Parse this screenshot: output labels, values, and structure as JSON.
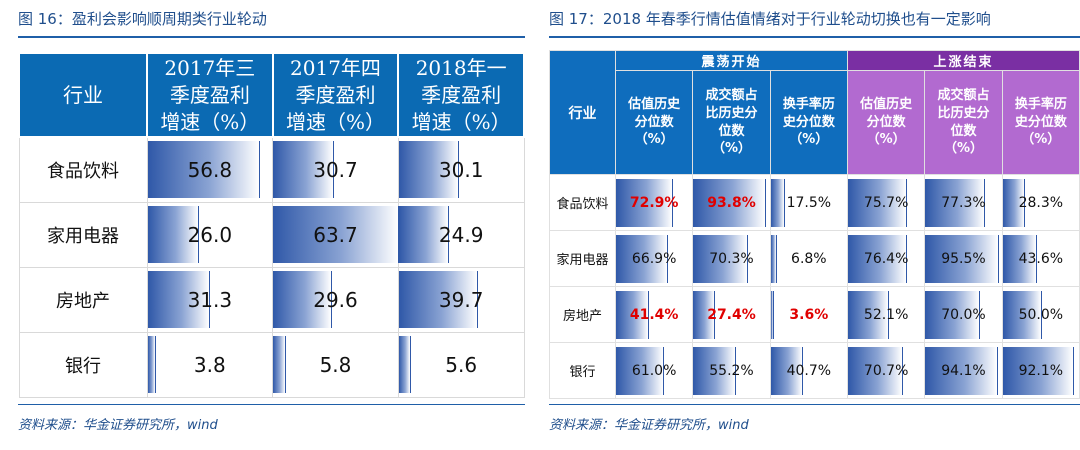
{
  "left": {
    "title": "图 16：盈利会影响顺周期类行业轮动",
    "header": {
      "industry": "行业",
      "cols": [
        [
          "2017年三",
          "季度盈利",
          "增速（%）"
        ],
        [
          "2017年四",
          "季度盈利",
          "增速（%）"
        ],
        [
          "2018年一",
          "季度盈利",
          "增速（%）"
        ]
      ]
    },
    "source": "资料来源：华金证券研究所，wind"
  },
  "right": {
    "title": "图 17：2018 年春季行情估值情绪对于行业轮动切换也有一定影响",
    "group1": "震荡开始",
    "group2": "上涨结束",
    "industry_header": "行业",
    "col_headers": [
      [
        "估值历史",
        "分位数",
        "（%）"
      ],
      [
        "成交额占",
        "比历史分",
        "位数",
        "（%）"
      ],
      [
        "换手率历",
        "史分位数",
        "（%）"
      ],
      [
        "估值历史",
        "分位数",
        "（%）"
      ],
      [
        "成交额占",
        "比历史分",
        "位数",
        "（%）"
      ],
      [
        "换手率历",
        "史分位数",
        "（%）"
      ]
    ],
    "source": "资料来源：华金证券研究所，wind"
  },
  "chart_data": [
    {
      "type": "table",
      "title": "图 16：盈利会影响顺周期类行业轮动",
      "columns": [
        "行业",
        "2017年三季度盈利增速（%）",
        "2017年四季度盈利增速（%）",
        "2018年一季度盈利增速（%）"
      ],
      "rows": [
        "食品饮料",
        "家用电器",
        "房地产",
        "银行"
      ],
      "series": [
        {
          "name": "2017年三季度盈利增速（%）",
          "values": [
            56.8,
            26.0,
            31.3,
            3.8
          ],
          "display": [
            "56.8",
            "26.0",
            "31.3",
            "3.8"
          ]
        },
        {
          "name": "2017年四季度盈利增速（%）",
          "values": [
            30.7,
            63.7,
            29.6,
            5.8
          ],
          "display": [
            "30.7",
            "63.7",
            "29.6",
            "5.8"
          ]
        },
        {
          "name": "2018年一季度盈利增速（%）",
          "values": [
            30.1,
            24.9,
            39.7,
            5.6
          ],
          "display": [
            "30.1",
            "24.9",
            "39.7",
            "5.6"
          ]
        }
      ],
      "bar_max": 63.7
    },
    {
      "type": "table",
      "title": "图 17：2018 年春季行情估值情绪对于行业轮动切换也有一定影响",
      "groups": [
        "震荡开始",
        "上涨结束"
      ],
      "columns": [
        "行业",
        "估值历史分位数（%）",
        "成交额占比历史分位数（%）",
        "换手率历史分位数（%）",
        "估值历史分位数（%）",
        "成交额占比历史分位数（%）",
        "换手率历史分位数（%）"
      ],
      "rows": [
        "食品饮料",
        "家用电器",
        "房地产",
        "银行"
      ],
      "series": [
        {
          "name": "震荡开始-估值历史分位数",
          "values": [
            72.9,
            66.9,
            41.4,
            61.0
          ],
          "display": [
            "72.9%",
            "66.9%",
            "41.4%",
            "61.0%"
          ]
        },
        {
          "name": "震荡开始-成交额占比历史分位数",
          "values": [
            93.8,
            70.3,
            27.4,
            55.2
          ],
          "display": [
            "93.8%",
            "70.3%",
            "27.4%",
            "55.2%"
          ]
        },
        {
          "name": "震荡开始-换手率历史分位数",
          "values": [
            17.5,
            6.8,
            3.6,
            40.7
          ],
          "display": [
            "17.5%",
            "6.8%",
            "3.6%",
            "40.7%"
          ]
        },
        {
          "name": "上涨结束-估值历史分位数",
          "values": [
            75.7,
            76.4,
            52.1,
            70.7
          ],
          "display": [
            "75.7%",
            "76.4%",
            "52.1%",
            "70.7%"
          ]
        },
        {
          "name": "上涨结束-成交额占比历史分位数",
          "values": [
            77.3,
            95.5,
            70.0,
            94.1
          ],
          "display": [
            "77.3%",
            "95.5%",
            "70.0%",
            "94.1%"
          ]
        },
        {
          "name": "上涨结束-换手率历史分位数",
          "values": [
            28.3,
            43.6,
            50.0,
            92.1
          ],
          "display": [
            "28.3%",
            "43.6%",
            "50.0%",
            "92.1%"
          ]
        }
      ],
      "highlight_red": [
        [
          0,
          0
        ],
        [
          0,
          1
        ],
        [
          2,
          0
        ],
        [
          2,
          1
        ],
        [
          2,
          2
        ]
      ],
      "bar_max": 100
    }
  ]
}
